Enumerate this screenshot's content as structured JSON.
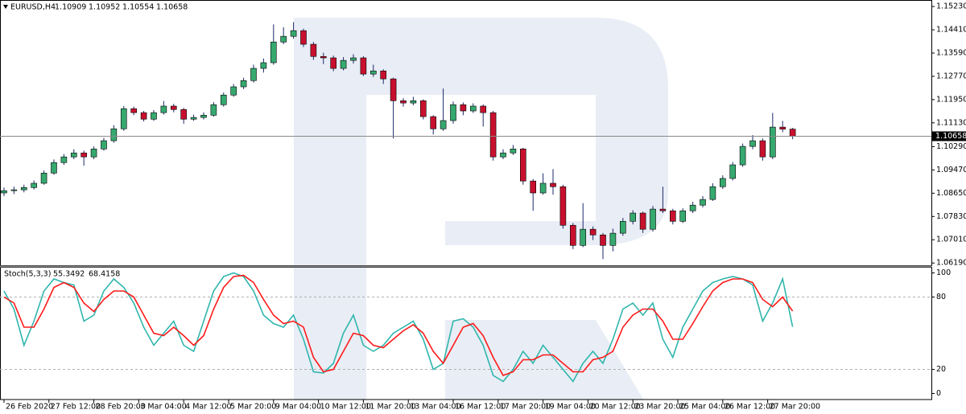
{
  "chart_data": [
    {
      "type": "candlestick",
      "title": "EURUSD,H4",
      "xlim": [
        -0.4,
        92.9
      ],
      "ylim": [
        1.0611,
        1.1546
      ],
      "yticks": [
        {
          "value": 1.1523,
          "label": "1.15230"
        },
        {
          "value": 1.1441,
          "label": "1.14410"
        },
        {
          "value": 1.1359,
          "label": "1.13590"
        },
        {
          "value": 1.1277,
          "label": "1.12770"
        },
        {
          "value": 1.1195,
          "label": "1.11950"
        },
        {
          "value": 1.1113,
          "label": "1.11130"
        },
        {
          "value": 1.1029,
          "label": "1.10290"
        },
        {
          "value": 1.0947,
          "label": "1.09470"
        },
        {
          "value": 1.0865,
          "label": "1.08650"
        },
        {
          "value": 1.0783,
          "label": "1.07830"
        },
        {
          "value": 1.0701,
          "label": "1.07010"
        },
        {
          "value": 1.0619,
          "label": "1.06190"
        }
      ],
      "up_color": "#36a96f",
      "down_color": "#c8102e",
      "wick_color": "#1c2a6b",
      "open": [
        1.0866,
        1.0874,
        1.0877,
        1.0885,
        1.09,
        1.0936,
        1.0973,
        1.0993,
        1.1007,
        1.0993,
        1.1021,
        1.105,
        1.1092,
        1.1163,
        1.1149,
        1.1126,
        1.1149,
        1.1172,
        1.116,
        1.1126,
        1.1132,
        1.114,
        1.1177,
        1.1211,
        1.124,
        1.1262,
        1.1305,
        1.1325,
        1.1398,
        1.1418,
        1.1438,
        1.139,
        1.1347,
        1.1342,
        1.1305,
        1.1333,
        1.1342,
        1.1285,
        1.1296,
        1.1268,
        1.1191,
        1.1183,
        1.1191,
        1.1135,
        1.1092,
        1.1121,
        1.1177,
        1.1155,
        1.1172,
        1.1149,
        1.0993,
        1.1007,
        1.1021,
        1.0908,
        1.0866,
        1.09,
        1.0888,
        1.0752,
        1.0681,
        1.0738,
        1.0718,
        1.0681,
        1.0724,
        1.0766,
        1.0795,
        1.0738,
        1.0809,
        1.0803,
        1.0766,
        1.0803,
        1.0823,
        1.0843,
        1.0888,
        1.0917,
        1.0965,
        1.103,
        1.105,
        1.0993,
        1.1098,
        1.10909
      ],
      "high": [
        1.0885,
        1.0888,
        1.0895,
        1.091,
        1.0945,
        1.0984,
        1.1003,
        1.102,
        1.1015,
        1.103,
        1.106,
        1.1105,
        1.1172,
        1.117,
        1.1155,
        1.1158,
        1.119,
        1.118,
        1.1166,
        1.1142,
        1.115,
        1.1186,
        1.122,
        1.125,
        1.1272,
        1.1318,
        1.134,
        1.146,
        1.145,
        1.1468,
        1.1445,
        1.1398,
        1.136,
        1.135,
        1.1345,
        1.1355,
        1.1348,
        1.1318,
        1.1302,
        1.1272,
        1.12,
        1.1205,
        1.1196,
        1.114,
        1.1234,
        1.1188,
        1.1185,
        1.1182,
        1.1178,
        1.1155,
        1.102,
        1.1035,
        1.1025,
        1.0915,
        1.0935,
        1.095,
        1.0895,
        1.076,
        1.083,
        1.0748,
        1.0725,
        1.074,
        1.0778,
        1.0805,
        1.08,
        1.082,
        1.0888,
        1.081,
        1.0812,
        1.0835,
        1.0855,
        1.09,
        1.0928,
        1.0975,
        1.104,
        1.107,
        1.1058,
        1.1148,
        1.112,
        1.10952
      ],
      "low": [
        1.0855,
        1.0862,
        1.0868,
        1.0878,
        1.0895,
        1.093,
        1.0965,
        1.0985,
        1.0962,
        1.0985,
        1.1015,
        1.1043,
        1.1085,
        1.114,
        1.1118,
        1.112,
        1.1142,
        1.115,
        1.111,
        1.112,
        1.1125,
        1.1135,
        1.117,
        1.1205,
        1.1232,
        1.1255,
        1.129,
        1.1318,
        1.139,
        1.141,
        1.138,
        1.1335,
        1.132,
        1.1295,
        1.1298,
        1.1322,
        1.1278,
        1.1275,
        1.125,
        1.1058,
        1.117,
        1.1175,
        1.1125,
        1.1072,
        1.1085,
        1.111,
        1.114,
        1.1148,
        1.11,
        1.098,
        1.0985,
        1.1,
        1.0895,
        1.0803,
        1.086,
        1.086,
        1.074,
        1.0668,
        1.0675,
        1.07,
        1.0633,
        1.066,
        1.0715,
        1.0755,
        1.0725,
        1.073,
        1.0795,
        1.0755,
        1.076,
        1.0795,
        1.0815,
        1.0838,
        1.088,
        1.091,
        1.0958,
        1.102,
        1.098,
        1.0985,
        1.108,
        1.10554
      ],
      "close": [
        1.0874,
        1.0877,
        1.0885,
        1.09,
        1.0936,
        1.0973,
        1.0993,
        1.1007,
        1.0993,
        1.1021,
        1.105,
        1.1092,
        1.1163,
        1.1149,
        1.1126,
        1.1149,
        1.1172,
        1.116,
        1.1126,
        1.1132,
        1.114,
        1.1177,
        1.1211,
        1.124,
        1.1262,
        1.1305,
        1.1325,
        1.1398,
        1.1418,
        1.1438,
        1.139,
        1.1347,
        1.1342,
        1.1305,
        1.1333,
        1.1342,
        1.1285,
        1.1296,
        1.1268,
        1.1191,
        1.1183,
        1.1191,
        1.1135,
        1.1092,
        1.1121,
        1.1177,
        1.1155,
        1.1172,
        1.1149,
        1.0993,
        1.1007,
        1.1021,
        1.0908,
        1.0866,
        1.09,
        1.0888,
        1.0752,
        1.0681,
        1.0738,
        1.0718,
        1.0681,
        1.0724,
        1.0766,
        1.0795,
        1.0738,
        1.0809,
        1.0803,
        1.0766,
        1.0803,
        1.0823,
        1.0843,
        1.0888,
        1.0917,
        1.0965,
        1.103,
        1.105,
        1.0993,
        1.1098,
        1.10909,
        1.10658
      ]
    },
    {
      "type": "line",
      "title": "Stoch(5,3,3)",
      "xlim": [
        -0.4,
        92.9
      ],
      "ylim": [
        -5,
        105
      ],
      "yticks": [
        0,
        20,
        80,
        100
      ],
      "grid": "dashed",
      "xticks": [
        {
          "value": 0,
          "label": "26 Feb 2020"
        },
        {
          "value": 4.5,
          "label": "27 Feb 12:00"
        },
        {
          "value": 9,
          "label": "28 Feb 20:00"
        },
        {
          "value": 13.5,
          "label": "3 Mar 04:00"
        },
        {
          "value": 18,
          "label": "4 Mar 12:00"
        },
        {
          "value": 22.5,
          "label": "5 Mar 20:00"
        },
        {
          "value": 27,
          "label": "9 Mar 04:00"
        },
        {
          "value": 31.5,
          "label": "10 Mar 12:00"
        },
        {
          "value": 36,
          "label": "11 Mar 20:00"
        },
        {
          "value": 40.5,
          "label": "13 Mar 04:00"
        },
        {
          "value": 45,
          "label": "16 Mar 12:00"
        },
        {
          "value": 49.5,
          "label": "17 Mar 20:00"
        },
        {
          "value": 54,
          "label": "19 Mar 04:00"
        },
        {
          "value": 58.5,
          "label": "20 Mar 12:00"
        },
        {
          "value": 63,
          "label": "23 Mar 20:00"
        },
        {
          "value": 67.5,
          "label": "25 Mar 04:00"
        },
        {
          "value": 72,
          "label": "26 Mar 12:00"
        },
        {
          "value": 76.5,
          "label": "27 Mar 20:00"
        }
      ],
      "series": [
        {
          "color": "#2fb6ad",
          "values": [
            85,
            70,
            40,
            60,
            85,
            95,
            92,
            90,
            60,
            65,
            85,
            95,
            88,
            75,
            55,
            40,
            50,
            60,
            40,
            35,
            60,
            85,
            97,
            100,
            97,
            85,
            65,
            58,
            55,
            65,
            45,
            18,
            17,
            25,
            50,
            65,
            40,
            35,
            40,
            50,
            55,
            60,
            45,
            20,
            25,
            60,
            62,
            55,
            40,
            15,
            10,
            20,
            35,
            25,
            40,
            30,
            20,
            10,
            25,
            35,
            25,
            45,
            70,
            75,
            65,
            75,
            45,
            30,
            55,
            70,
            85,
            92,
            95,
            97,
            95,
            90,
            60,
            75,
            95,
            55.3492
          ]
        },
        {
          "color": "#ff1a1a",
          "values": [
            80,
            75,
            55,
            55,
            70,
            88,
            92,
            88,
            75,
            68,
            78,
            85,
            85,
            80,
            65,
            50,
            48,
            55,
            48,
            40,
            48,
            70,
            88,
            97,
            98,
            92,
            78,
            65,
            58,
            60,
            55,
            30,
            18,
            20,
            35,
            50,
            48,
            40,
            38,
            45,
            52,
            57,
            50,
            35,
            25,
            40,
            55,
            58,
            48,
            30,
            15,
            18,
            28,
            28,
            32,
            32,
            25,
            18,
            18,
            28,
            30,
            35,
            55,
            65,
            70,
            70,
            60,
            45,
            45,
            58,
            72,
            85,
            92,
            95,
            95,
            92,
            78,
            72,
            80,
            68.4158
          ]
        }
      ]
    }
  ]
}
